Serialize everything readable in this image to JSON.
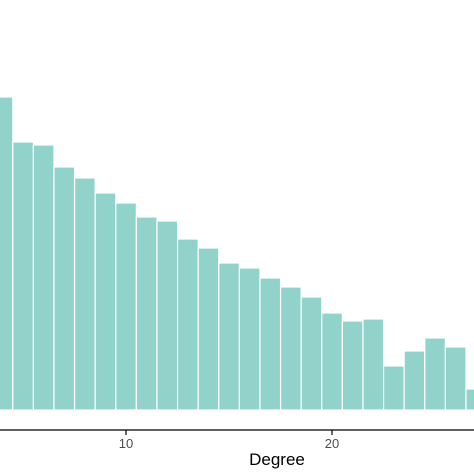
{
  "chart_data": {
    "type": "bar",
    "xlabel": "Degree",
    "ylabel": "",
    "title": "",
    "bar_color": "#91d3cb",
    "x": [
      4,
      5,
      6,
      7,
      8,
      9,
      10,
      11,
      12,
      13,
      14,
      15,
      16,
      17,
      18,
      19,
      20,
      21,
      22,
      23,
      24,
      25,
      26,
      27
    ],
    "values": [
      313,
      268,
      265,
      243,
      232,
      217,
      207,
      193,
      189,
      171,
      162,
      147,
      142,
      132,
      123,
      113,
      97,
      89,
      91,
      44,
      59,
      72,
      63,
      21
    ],
    "xlim": [
      4,
      27.5
    ],
    "ylim": [
      0,
      330
    ],
    "xticks": [
      "10",
      "20"
    ],
    "grid": false
  }
}
